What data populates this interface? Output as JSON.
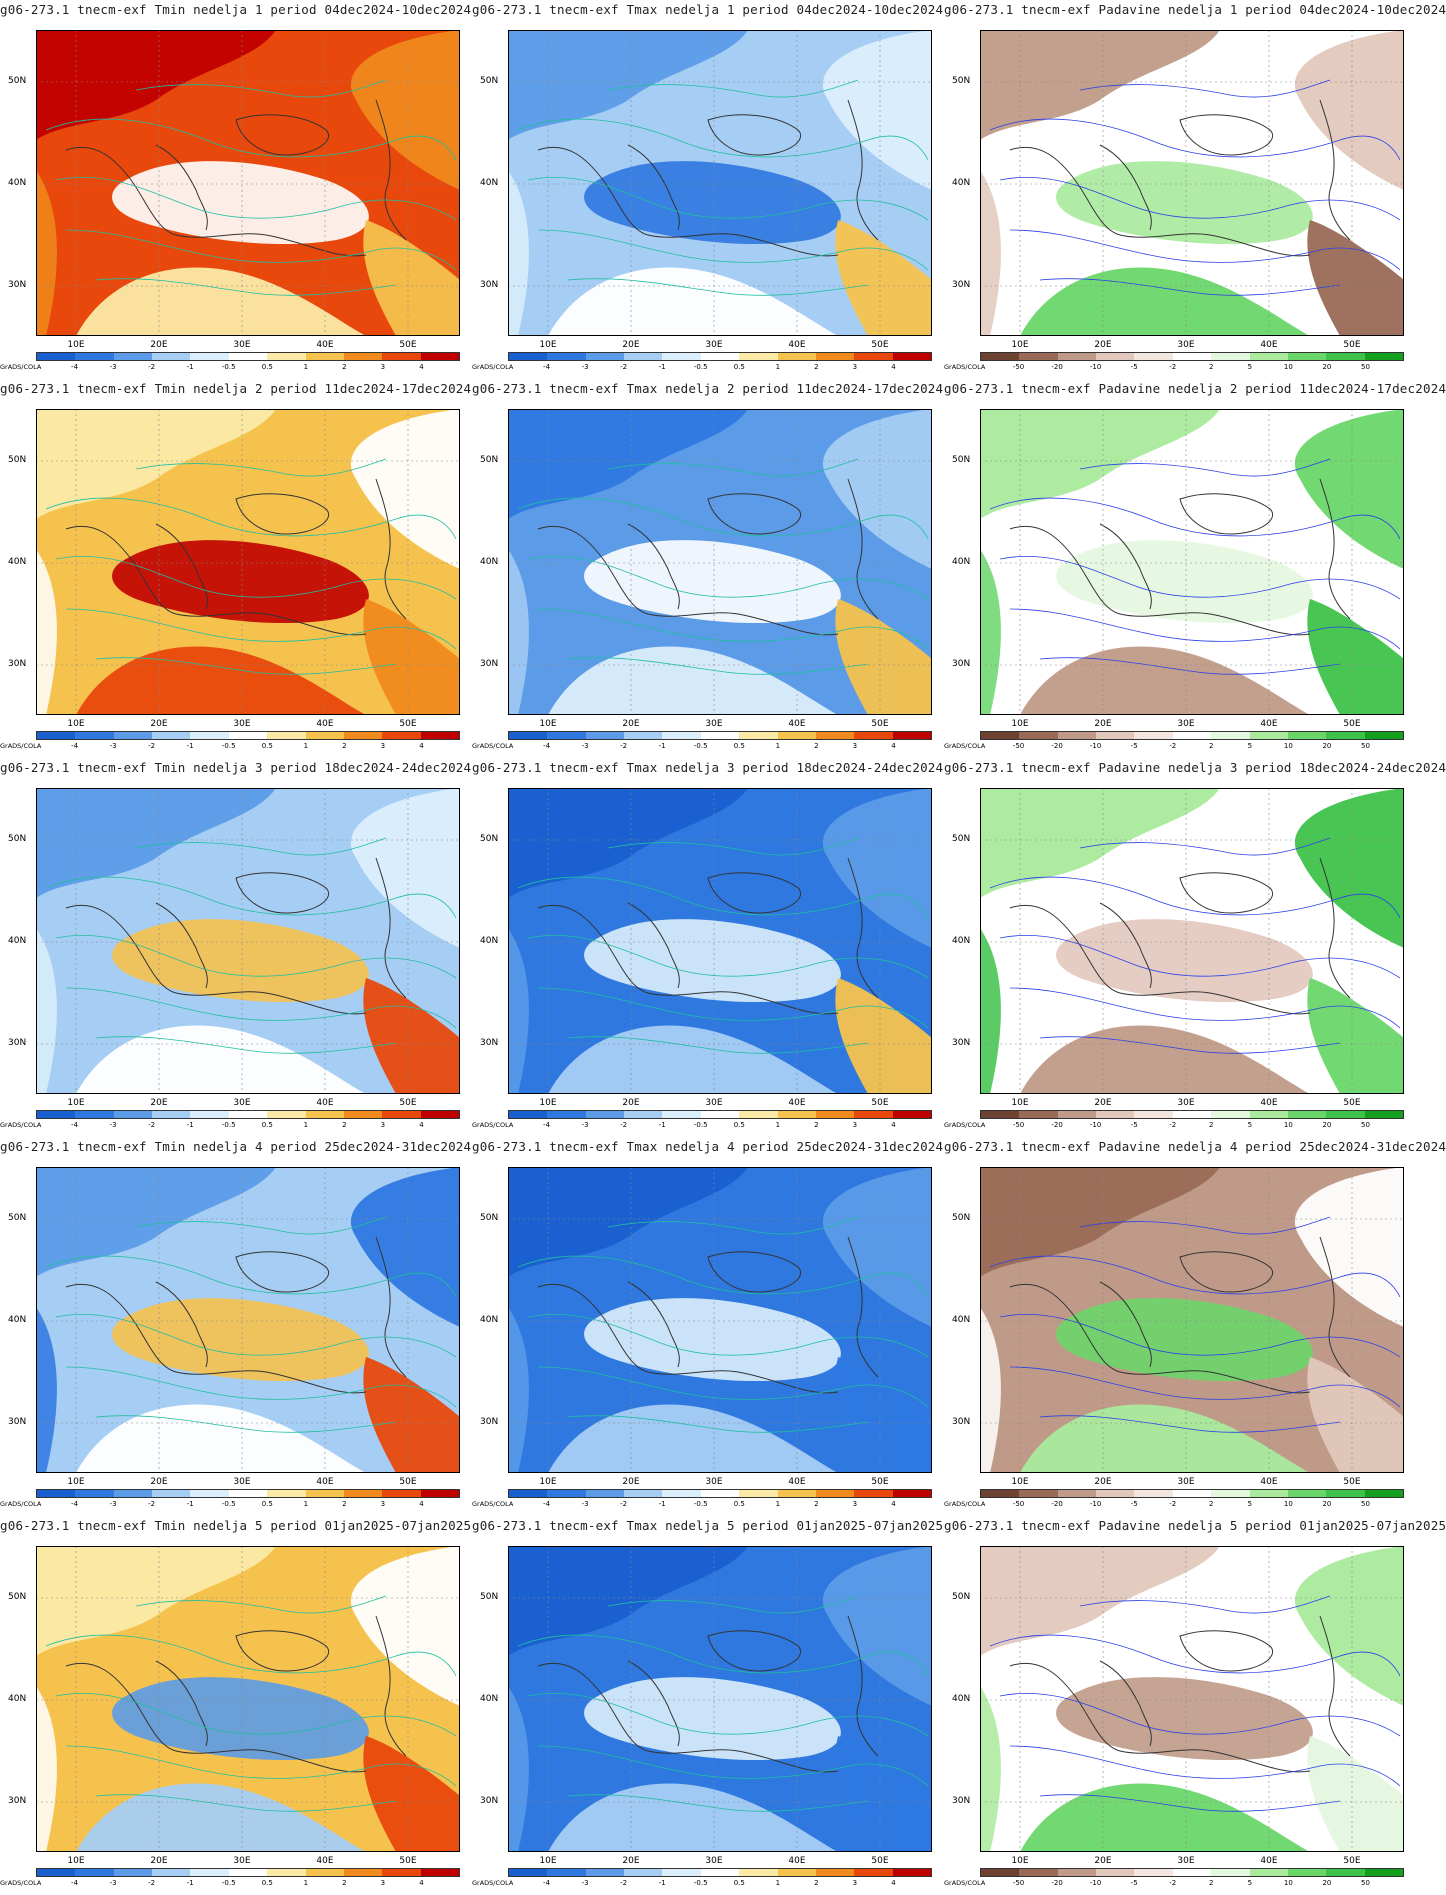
{
  "footer_label": "GrADS/COLA",
  "lat_labels": [
    "50N",
    "40N",
    "30N"
  ],
  "lon_labels": [
    "10E",
    "20E",
    "30E",
    "40E",
    "50E"
  ],
  "legends": {
    "temp": {
      "colors": [
        "#1a5fd0",
        "#2e78e0",
        "#5b9be8",
        "#a6cdf4",
        "#dbeefc",
        "#ffffff",
        "#fbeaa6",
        "#f6c24e",
        "#f08a1c",
        "#e8480c",
        "#c00000"
      ],
      "labels": [
        "-4",
        "-3",
        "-2",
        "-1",
        "-0.5",
        "0.5",
        "1",
        "2",
        "3",
        "4"
      ]
    },
    "precip": {
      "colors": [
        "#6e4230",
        "#9a6a56",
        "#c09a88",
        "#e2c8bc",
        "#f3e6df",
        "#ffffff",
        "#e4f7df",
        "#a9ea9c",
        "#6ad66a",
        "#3ec24a",
        "#14a01e"
      ],
      "labels": [
        "-50",
        "-20",
        "-10",
        "-5",
        "-2",
        "2",
        "5",
        "10",
        "20",
        "50"
      ]
    }
  },
  "panels": [
    {
      "title": "g06-273.1 tnecm-exf Tmin nedelja 1 period 04dec2024-10dec2024",
      "legend": "temp",
      "colors": [
        "#e8480c",
        "#c00000",
        "#f08a1c",
        "#fbeaa6",
        "#ffffff",
        "#f6c24e"
      ]
    },
    {
      "title": "g06-273.1 tnecm-exf Tmax nedelja 1 period 04dec2024-10dec2024",
      "legend": "temp",
      "colors": [
        "#a6cdf4",
        "#5b9be8",
        "#dbeefc",
        "#ffffff",
        "#2e78e0",
        "#f6c24e"
      ]
    },
    {
      "title": "g06-273.1 tnecm-exf Padavine nedelja 1 period 04dec2024-10dec2024",
      "legend": "precip",
      "colors": [
        "#ffffff",
        "#c09a88",
        "#e2c8bc",
        "#6ad66a",
        "#a9ea9c",
        "#9a6a56"
      ]
    },
    {
      "title": "g06-273.1 tnecm-exf Tmin nedelja 2 period 11dec2024-17dec2024",
      "legend": "temp",
      "colors": [
        "#f6c24e",
        "#fbeaa6",
        "#ffffff",
        "#e8480c",
        "#c00000",
        "#f08a1c"
      ]
    },
    {
      "title": "g06-273.1 tnecm-exf Tmax nedelja 2 period 11dec2024-17dec2024",
      "legend": "temp",
      "colors": [
        "#5b9be8",
        "#2e78e0",
        "#a6cdf4",
        "#dbeefc",
        "#ffffff",
        "#f6c24e"
      ]
    },
    {
      "title": "g06-273.1 tnecm-exf Padavine nedelja 2 period 11dec2024-17dec2024",
      "legend": "precip",
      "colors": [
        "#ffffff",
        "#a9ea9c",
        "#6ad66a",
        "#c09a88",
        "#e4f7df",
        "#3ec24a"
      ]
    },
    {
      "title": "g06-273.1 tnecm-exf Tmin nedelja 3 period 18dec2024-24dec2024",
      "legend": "temp",
      "colors": [
        "#a6cdf4",
        "#5b9be8",
        "#dbeefc",
        "#ffffff",
        "#f6c24e",
        "#e8480c"
      ]
    },
    {
      "title": "g06-273.1 tnecm-exf Tmax nedelja 3 period 18dec2024-24dec2024",
      "legend": "temp",
      "colors": [
        "#2e78e0",
        "#1a5fd0",
        "#5b9be8",
        "#a6cdf4",
        "#dbeefc",
        "#f6c24e"
      ]
    },
    {
      "title": "g06-273.1 tnecm-exf Padavine nedelja 3 period 18dec2024-24dec2024",
      "legend": "precip",
      "colors": [
        "#ffffff",
        "#a9ea9c",
        "#3ec24a",
        "#c09a88",
        "#e2c8bc",
        "#6ad66a"
      ]
    },
    {
      "title": "g06-273.1 tnecm-exf Tmin nedelja 4 period 25dec2024-31dec2024",
      "legend": "temp",
      "colors": [
        "#a6cdf4",
        "#5b9be8",
        "#2e78e0",
        "#ffffff",
        "#f6c24e",
        "#e8480c"
      ]
    },
    {
      "title": "g06-273.1 tnecm-exf Tmax nedelja 4 period 25dec2024-31dec2024",
      "legend": "temp",
      "colors": [
        "#2e78e0",
        "#1a5fd0",
        "#5b9be8",
        "#a6cdf4",
        "#dbeefc",
        "#2e78e0"
      ]
    },
    {
      "title": "g06-273.1 tnecm-exf Padavine nedelja 4 period 25dec2024-31dec2024",
      "legend": "precip",
      "colors": [
        "#c09a88",
        "#9a6a56",
        "#ffffff",
        "#a9ea9c",
        "#6ad66a",
        "#e2c8bc"
      ]
    },
    {
      "title": "g06-273.1 tnecm-exf Tmin nedelja 5 period 01jan2025-07jan2025",
      "legend": "temp",
      "colors": [
        "#f6c24e",
        "#fbeaa6",
        "#ffffff",
        "#a6cdf4",
        "#5b9be8",
        "#e8480c"
      ]
    },
    {
      "title": "g06-273.1 tnecm-exf Tmax nedelja 5 period 01jan2025-07jan2025",
      "legend": "temp",
      "colors": [
        "#2e78e0",
        "#1a5fd0",
        "#5b9be8",
        "#a6cdf4",
        "#dbeefc",
        "#2e78e0"
      ]
    },
    {
      "title": "g06-273.1 tnecm-exf Padavine nedelja 5 period 01jan2025-07jan2025",
      "legend": "precip",
      "colors": [
        "#ffffff",
        "#e2c8bc",
        "#a9ea9c",
        "#6ad66a",
        "#c09a88",
        "#e4f7df"
      ]
    }
  ]
}
